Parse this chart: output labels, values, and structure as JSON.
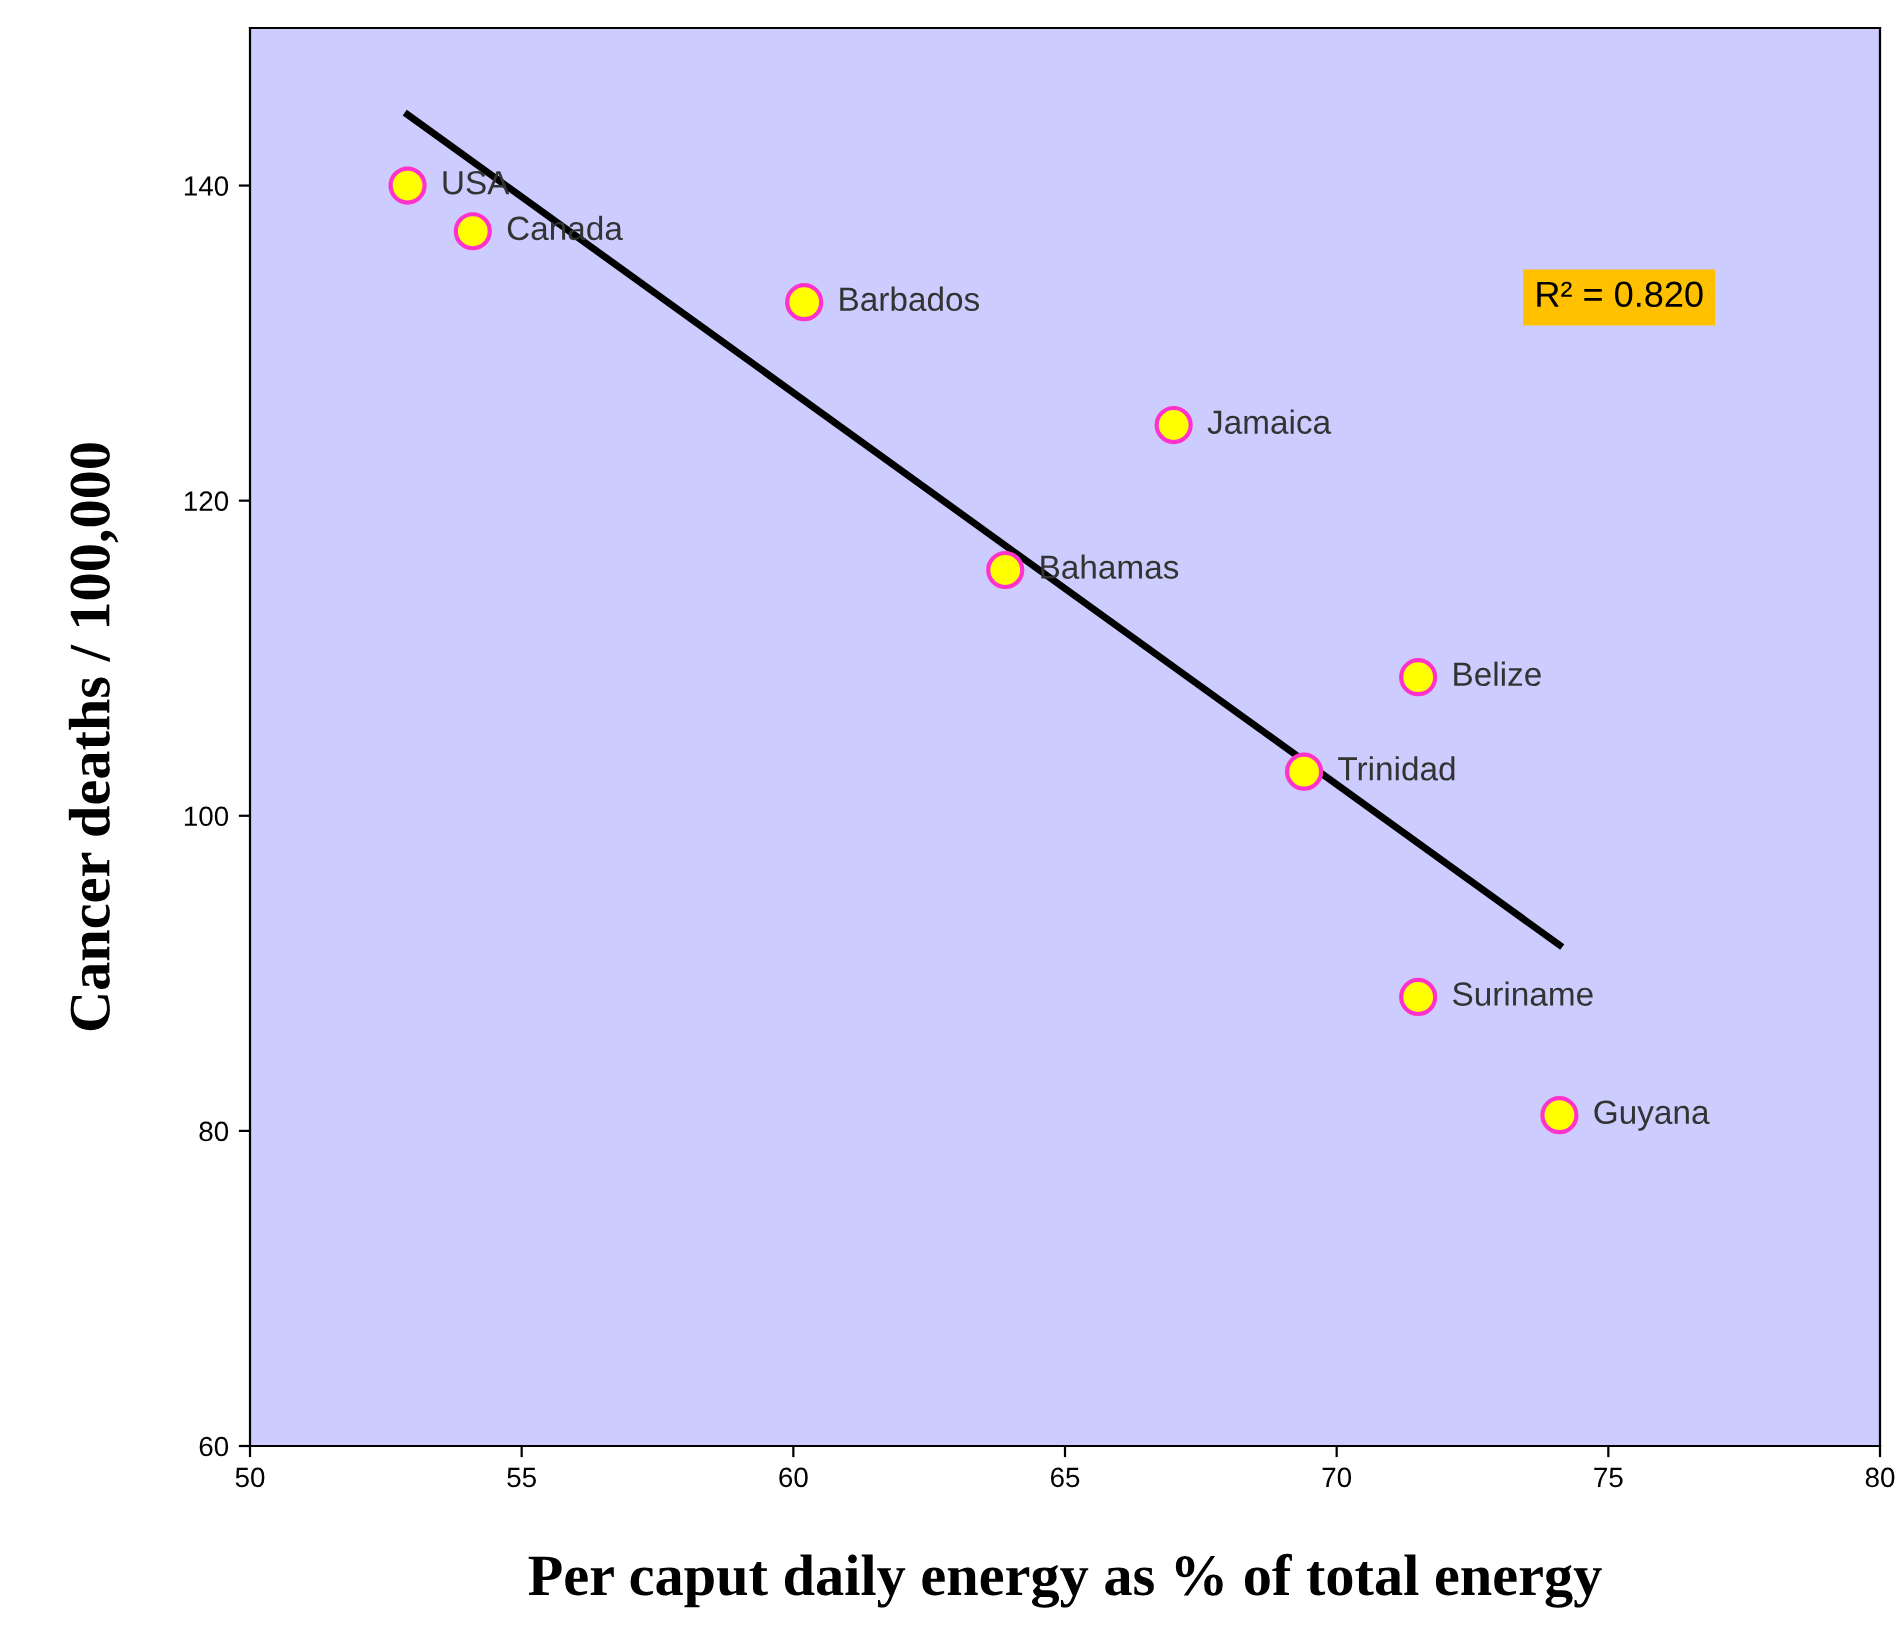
{
  "chart_data": {
    "type": "scatter",
    "xlabel": "Per caput daily energy as % of total energy",
    "ylabel": "Cancer deaths / 100,000",
    "series": [
      {
        "marker": "circle",
        "color": "#ffff00",
        "x": [
          52.9,
          54.1,
          60.2,
          67.0,
          63.9,
          71.5,
          69.4,
          71.5,
          74.1
        ],
        "values": [
          140.0,
          137.1,
          132.6,
          124.8,
          115.6,
          108.8,
          102.8,
          88.5,
          81.0
        ]
      },
      {
        "type": "line",
        "marker": "none",
        "color": "#000000",
        "x": [
          52.9,
          74.1
        ],
        "values": [
          144.5,
          91.8
        ]
      }
    ],
    "xlim": [
      50,
      80
    ],
    "xticks": [
      50,
      55,
      60,
      65,
      70,
      75,
      80
    ],
    "ylim": [
      60,
      150
    ],
    "yticks": [
      60,
      80,
      100,
      120,
      140
    ],
    "grid": false,
    "legend": false,
    "annotations": [
      {
        "text": "USA",
        "x": 52.9,
        "y": 140.0
      },
      {
        "text": "Canada",
        "x": 54.1,
        "y": 137.1
      },
      {
        "text": "Barbados",
        "x": 60.2,
        "y": 132.6
      },
      {
        "text": "Jamaica",
        "x": 67.0,
        "y": 124.8
      },
      {
        "text": "Bahamas",
        "x": 63.9,
        "y": 115.6
      },
      {
        "text": "Belize",
        "x": 71.5,
        "y": 108.8
      },
      {
        "text": "Trinidad",
        "x": 69.4,
        "y": 102.8
      },
      {
        "text": "Suriname",
        "x": 71.5,
        "y": 88.5
      },
      {
        "text": "Guyana",
        "x": 74.1,
        "y": 81.0
      },
      "R² = 0.820"
    ]
  }
}
